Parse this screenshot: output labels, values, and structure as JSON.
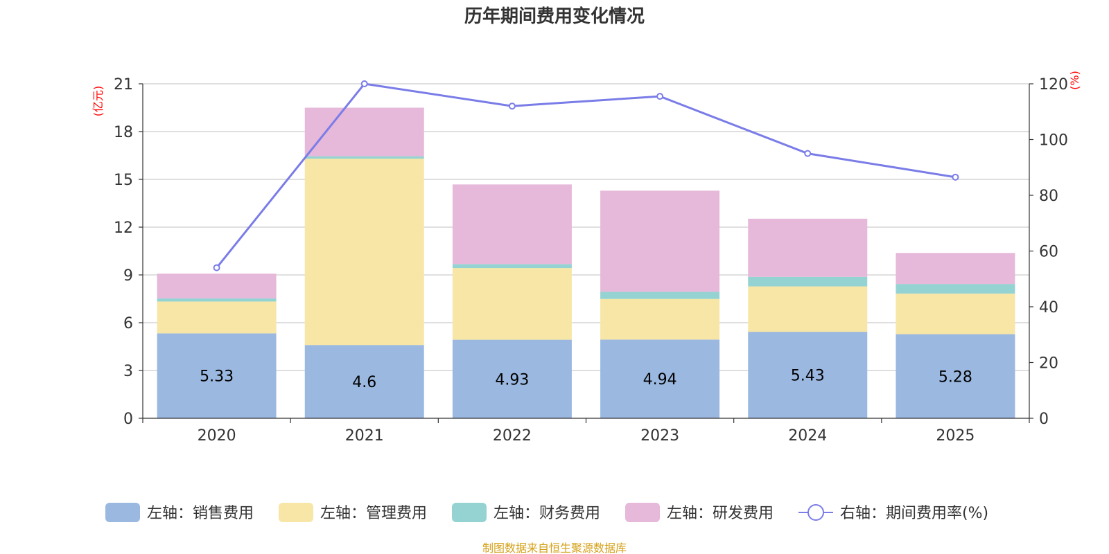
{
  "chart_data": {
    "type": "bar",
    "title": "历年期间费用变化情况",
    "categories": [
      "2020",
      "2021",
      "2022",
      "2023",
      "2024",
      "2025"
    ],
    "left_axis": {
      "unit": "(亿元)",
      "ylim": [
        0,
        21
      ],
      "ticks": [
        "0",
        "3",
        "6",
        "9",
        "12",
        "15",
        "18",
        "21"
      ]
    },
    "right_axis": {
      "unit": "(%)",
      "ylim": [
        0,
        120
      ],
      "ticks": [
        "0",
        "20",
        "40",
        "60",
        "80",
        "100",
        "120"
      ]
    },
    "series": [
      {
        "name": "左轴：销售费用",
        "type": "bar",
        "axis": "left",
        "color": "#9bb8e1",
        "values": [
          5.33,
          4.6,
          4.93,
          4.94,
          5.43,
          5.28
        ],
        "labels": [
          "5.33",
          "4.6",
          "4.93",
          "4.94",
          "5.43",
          "5.28"
        ]
      },
      {
        "name": "左轴：管理费用",
        "type": "bar",
        "axis": "left",
        "color": "#f7e6a6",
        "values": [
          2.0,
          11.7,
          4.5,
          2.55,
          2.85,
          2.55
        ]
      },
      {
        "name": "左轴：财务费用",
        "type": "bar",
        "axis": "left",
        "color": "#95d3d3",
        "values": [
          0.2,
          0.15,
          0.25,
          0.45,
          0.6,
          0.6
        ]
      },
      {
        "name": "左轴：研发费用",
        "type": "bar",
        "axis": "left",
        "color": "#e6b8d9",
        "values": [
          1.55,
          3.05,
          5.0,
          6.35,
          3.65,
          1.95
        ]
      },
      {
        "name": "右轴：期间费用率(%)",
        "type": "line",
        "axis": "right",
        "color": "#7a7ce8",
        "values": [
          54,
          120,
          112,
          115.5,
          95,
          86.5
        ]
      }
    ],
    "legend_position": "bottom"
  },
  "source": "制图数据来自恒生聚源数据库",
  "colors": {
    "title": "#333333",
    "unit": "#ff0000",
    "source": "#d4a017",
    "grid": "#cccccc",
    "axis": "#333333"
  }
}
